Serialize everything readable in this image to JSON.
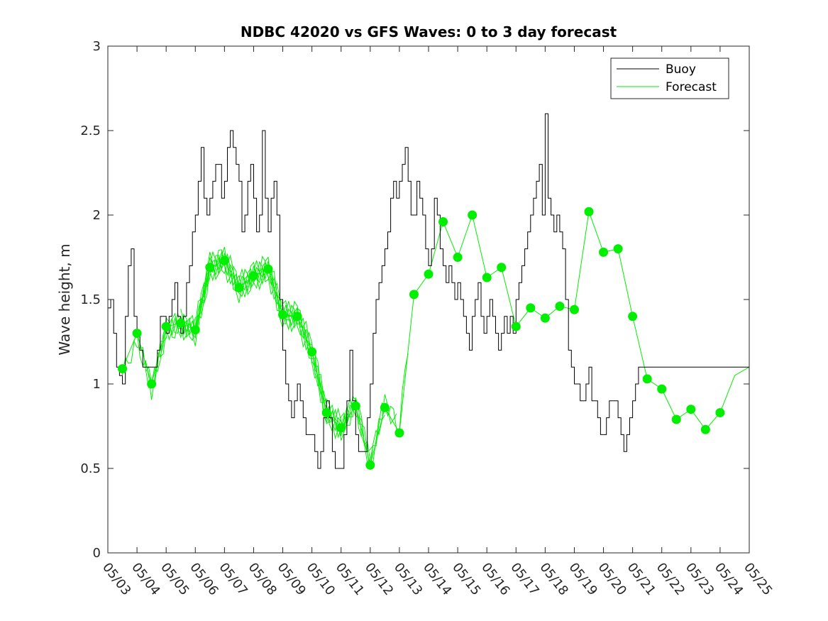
{
  "chart_data": {
    "type": "line",
    "title": "NDBC 42020 vs GFS Waves: 0 to 3 day forecast",
    "xlabel": "",
    "ylabel": "Wave height, m",
    "x_tick_labels": [
      "05/03",
      "05/04",
      "05/05",
      "05/06",
      "05/07",
      "05/08",
      "05/09",
      "05/10",
      "05/11",
      "05/12",
      "05/13",
      "05/14",
      "05/15",
      "05/16",
      "05/17",
      "05/18",
      "05/19",
      "05/20",
      "05/21",
      "05/22",
      "05/23",
      "05/24",
      "05/25"
    ],
    "xlim": [
      0,
      22
    ],
    "ylim": [
      0,
      3
    ],
    "y_ticks": [
      0,
      0.5,
      1,
      1.5,
      2,
      2.5,
      3
    ],
    "y_tick_labels": [
      "0",
      "0.5",
      "1",
      "1.5",
      "2",
      "2.5",
      "3"
    ],
    "grid": false,
    "legend_position": "top-right",
    "colors": {
      "buoy": "#000000",
      "forecast": "#00ee00",
      "analysis": "#00ee00"
    },
    "series": [
      {
        "name": "Buoy",
        "x": [
          0,
          0.1,
          0.2,
          0.3,
          0.4,
          0.5,
          0.6,
          0.7,
          0.8,
          0.9,
          1.0,
          1.1,
          1.2,
          1.3,
          1.4,
          1.5,
          1.6,
          1.7,
          1.8,
          1.9,
          2.0,
          2.1,
          2.2,
          2.3,
          2.4,
          2.5,
          2.6,
          2.7,
          2.8,
          2.9,
          3.0,
          3.1,
          3.2,
          3.3,
          3.4,
          3.5,
          3.6,
          3.7,
          3.8,
          3.9,
          4.0,
          4.1,
          4.2,
          4.3,
          4.4,
          4.5,
          4.6,
          4.7,
          4.8,
          4.9,
          5.0,
          5.1,
          5.2,
          5.3,
          5.4,
          5.5,
          5.6,
          5.7,
          5.8,
          5.9,
          6.0,
          6.1,
          6.2,
          6.3,
          6.4,
          6.5,
          6.6,
          6.7,
          6.8,
          6.9,
          7.0,
          7.1,
          7.2,
          7.3,
          7.4,
          7.5,
          7.6,
          7.7,
          7.8,
          7.9,
          8.0,
          8.1,
          8.2,
          8.3,
          8.4,
          8.5,
          8.6,
          8.7,
          8.8,
          8.9,
          9.0,
          9.1,
          9.2,
          9.3,
          9.4,
          9.5,
          9.6,
          9.7,
          9.8,
          9.9,
          10.0,
          10.1,
          10.2,
          10.3,
          10.4,
          10.5,
          10.6,
          10.7,
          10.8,
          10.9,
          11.0,
          11.1,
          11.2,
          11.3,
          11.4,
          11.5,
          11.6,
          11.7,
          11.8,
          11.9,
          12.0,
          12.1,
          12.2,
          12.3,
          12.4,
          12.5,
          12.6,
          12.7,
          12.8,
          12.9,
          13.0,
          13.1,
          13.2,
          13.3,
          13.4,
          13.5,
          13.6,
          13.7,
          13.8,
          13.9,
          14.0,
          14.1,
          14.2,
          14.3,
          14.4,
          14.5,
          14.6,
          14.7,
          14.8,
          14.9,
          15.0,
          15.1,
          15.2,
          15.3,
          15.4,
          15.5,
          15.6,
          15.7,
          15.8,
          15.9,
          16.0,
          16.1,
          16.2,
          16.3,
          16.4,
          16.5,
          16.6,
          16.7,
          16.8,
          16.9,
          17.0,
          17.1,
          17.2,
          17.3,
          17.4,
          17.5,
          17.6,
          17.7,
          17.8,
          17.9,
          18.0,
          18.1,
          18.2,
          18.3,
          18.4,
          18.5,
          18.6,
          18.7,
          18.8,
          18.9,
          19.0,
          19.1,
          19.2,
          19.3,
          19.4,
          19.5,
          19.6,
          19.7,
          19.8,
          19.9,
          20.0,
          20.1,
          20.2,
          20.3,
          20.4,
          20.5,
          20.6,
          20.7,
          20.8,
          20.9,
          21.0,
          21.1,
          21.2,
          21.3,
          21.4,
          21.5,
          21.6,
          21.7,
          21.8,
          21.9,
          22.0
        ],
        "y": [
          1.45,
          1.5,
          1.3,
          1.1,
          1.05,
          1.0,
          1.4,
          1.7,
          1.8,
          1.4,
          1.3,
          1.2,
          1.1,
          1.1,
          1.1,
          1.1,
          1.1,
          1.2,
          1.4,
          1.4,
          1.3,
          1.4,
          1.5,
          1.6,
          1.4,
          1.3,
          1.4,
          1.6,
          1.7,
          1.9,
          2.0,
          2.2,
          2.4,
          2.1,
          2.0,
          2.1,
          2.2,
          2.3,
          2.3,
          2.1,
          2.2,
          2.4,
          2.5,
          2.4,
          2.3,
          2.2,
          1.9,
          2.0,
          2.2,
          2.3,
          2.1,
          1.9,
          2.0,
          2.5,
          2.1,
          1.9,
          2.1,
          2.2,
          2.0,
          1.5,
          1.2,
          1.0,
          0.9,
          0.8,
          0.9,
          1.0,
          0.9,
          0.8,
          0.7,
          0.7,
          0.7,
          0.6,
          0.5,
          0.6,
          0.8,
          0.9,
          0.8,
          0.6,
          0.5,
          0.5,
          0.5,
          0.7,
          0.9,
          1.2,
          0.9,
          0.7,
          0.6,
          0.6,
          0.6,
          0.8,
          1.0,
          1.3,
          1.5,
          1.6,
          1.7,
          1.8,
          1.9,
          2.1,
          2.2,
          2.1,
          2.2,
          2.3,
          2.4,
          2.2,
          2.0,
          2.0,
          2.2,
          2.1,
          2.0,
          1.8,
          1.7,
          1.8,
          2.1,
          2.0,
          1.8,
          1.7,
          1.6,
          1.7,
          1.6,
          1.5,
          1.6,
          1.5,
          1.4,
          1.3,
          1.2,
          1.4,
          1.5,
          1.6,
          1.4,
          1.3,
          1.4,
          1.5,
          1.4,
          1.3,
          1.2,
          1.3,
          1.4,
          1.3,
          1.4,
          1.3,
          1.5,
          1.6,
          1.7,
          1.8,
          1.9,
          2.0,
          2.1,
          2.2,
          2.3,
          2.0,
          2.6,
          2.1,
          2.0,
          1.9,
          2.0,
          1.9,
          1.8,
          1.5,
          1.2,
          1.1,
          1.0,
          1.0,
          0.9,
          0.9,
          1.0,
          1.1,
          0.9,
          0.9,
          0.8,
          0.7,
          0.7,
          0.8,
          0.9,
          0.9,
          0.9,
          0.8,
          0.7,
          0.6,
          0.7,
          0.8,
          0.9,
          1.0,
          1.1,
          1.1,
          1.1,
          1.1,
          1.1,
          1.1,
          1.1,
          1.1,
          1.1,
          1.1,
          1.1,
          1.1,
          1.1,
          1.1,
          1.1,
          1.1,
          1.1,
          1.1,
          1.1,
          1.1,
          1.1,
          1.1,
          1.1,
          1.1,
          1.1,
          1.1,
          1.1,
          1.1,
          1.1,
          1.1,
          1.1,
          1.1,
          1.1,
          1.1,
          1.1,
          1.1,
          1.1,
          1.1,
          1.1
        ]
      },
      {
        "name": "Forecast",
        "x": [
          0.5,
          1.0,
          1.5,
          2.0,
          2.5,
          3.0,
          3.5,
          4.0,
          4.5,
          5.0,
          5.5,
          6.0,
          6.5,
          7.0,
          7.5,
          8.0,
          8.5,
          9.0,
          9.5,
          10.0,
          10.5,
          11.0,
          11.5,
          12.0,
          12.5,
          13.0,
          13.5,
          14.0,
          14.5,
          15.0,
          15.5,
          16.0,
          16.5,
          17.0,
          17.5,
          18.0,
          18.5,
          19.0,
          19.5,
          20.0,
          20.5,
          21.0,
          21.5,
          22.0
        ],
        "y": [
          1.09,
          1.3,
          1.0,
          1.34,
          1.36,
          1.32,
          1.69,
          1.73,
          1.57,
          1.64,
          1.68,
          1.41,
          1.4,
          1.19,
          0.83,
          0.74,
          0.87,
          0.52,
          0.86,
          0.71,
          1.53,
          1.65,
          1.96,
          1.75,
          2.0,
          1.63,
          1.69,
          1.34,
          1.45,
          1.39,
          1.46,
          1.44,
          2.02,
          1.78,
          1.8,
          1.4,
          1.03,
          0.97,
          0.79,
          0.85,
          0.73,
          0.83,
          1.05,
          1.1
        ]
      }
    ],
    "analysis_points": {
      "x": [
        0.5,
        1.0,
        1.5,
        2.0,
        2.5,
        3.0,
        3.5,
        4.0,
        4.5,
        5.0,
        5.5,
        6.0,
        6.5,
        7.0,
        7.5,
        8.0,
        8.5,
        9.0,
        9.5,
        10.0,
        10.5,
        11.0,
        11.5,
        12.0,
        12.5,
        13.0,
        13.5,
        14.0,
        14.5,
        15.0,
        15.5,
        16.0,
        16.5,
        17.0,
        17.5,
        18.0,
        18.5,
        19.0,
        19.5,
        20.0,
        20.5,
        21.0
      ],
      "y": [
        1.09,
        1.3,
        1.0,
        1.34,
        1.36,
        1.32,
        1.69,
        1.73,
        1.57,
        1.64,
        1.68,
        1.41,
        1.4,
        1.19,
        0.83,
        0.74,
        0.87,
        0.52,
        0.86,
        0.71,
        1.53,
        1.65,
        1.96,
        1.75,
        2.0,
        1.63,
        1.69,
        1.34,
        1.45,
        1.39,
        1.46,
        1.44,
        2.02,
        1.78,
        1.8,
        1.4,
        1.03,
        0.97,
        0.79,
        0.85,
        0.73,
        0.83
      ]
    }
  }
}
